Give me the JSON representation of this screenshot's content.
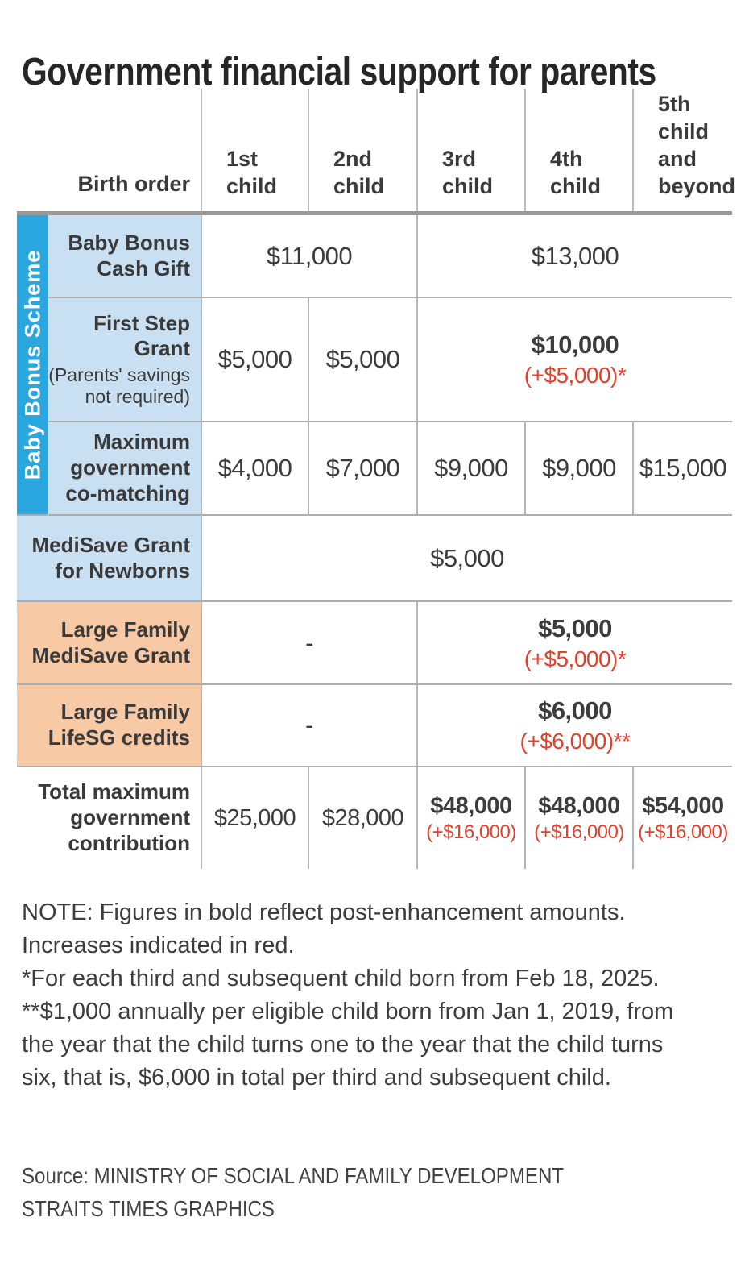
{
  "title": "Government financial support for parents",
  "table": {
    "header": {
      "label": "Birth order",
      "columns": [
        "1st\nchild",
        "2nd\nchild",
        "3rd\nchild",
        "4th\nchild",
        "5th\nchild\nand\nbeyond"
      ]
    },
    "sidebar_label": "Baby Bonus Scheme",
    "rows": [
      {
        "label": "Baby Bonus\nCash Gift",
        "cells": [
          {
            "main": "$11,000"
          },
          {
            "main": "$13,000"
          }
        ]
      },
      {
        "label": "First Step\nGrant",
        "sublabel": "(Parents' savings\nnot required)",
        "cells": [
          {
            "main": "$5,000"
          },
          {
            "main": "$5,000"
          },
          {
            "main": "$10,000",
            "sub": "(+$5,000)*"
          }
        ]
      },
      {
        "label": "Maximum\ngovernment\nco-matching",
        "cells": [
          {
            "main": "$4,000"
          },
          {
            "main": "$7,000"
          },
          {
            "main": "$9,000"
          },
          {
            "main": "$9,000"
          },
          {
            "main": "$15,000"
          }
        ]
      },
      {
        "label": "MediSave Grant\nfor Newborns",
        "cells": [
          {
            "main": "$5,000"
          }
        ]
      },
      {
        "label": "Large Family\nMediSave Grant",
        "cells": [
          {
            "main": "-"
          },
          {
            "main": "$5,000",
            "sub": "(+$5,000)*"
          }
        ]
      },
      {
        "label": "Large Family\nLifeSG credits",
        "cells": [
          {
            "main": "-"
          },
          {
            "main": "$6,000",
            "sub": "(+$6,000)**"
          }
        ]
      },
      {
        "label": "Total maximum\ngovernment\ncontribution",
        "cells": [
          {
            "main": "$25,000"
          },
          {
            "main": "$28,000"
          },
          {
            "main": "$48,000",
            "sub": "(+$16,000)"
          },
          {
            "main": "$48,000",
            "sub": "(+$16,000)"
          },
          {
            "main": "$54,000",
            "sub": "(+$16,000)"
          }
        ]
      }
    ]
  },
  "notes": {
    "text": "NOTE: Figures in bold reflect post-enhancement amounts.\nIncreases indicated in red.\n*For each third and subsequent child born from Feb 18, 2025.\n**$1,000 annually per eligible child born from Jan 1, 2019, from\nthe year that the child turns one to the year that the child turns\nsix, that is, $6,000 in total per third and subsequent child."
  },
  "source": {
    "text": "Source: MINISTRY OF SOCIAL AND FAMILY DEVELOPMENT\nSTRAITS TIMES GRAPHICS"
  },
  "colors": {
    "scheme_blue": "#29a7de",
    "label_blue": "#c9e0f2",
    "label_peach": "#f8c9a5",
    "increase_red": "#e5402d",
    "text_dark": "#3a3a3a",
    "grid_gray": "#b5b5b5",
    "header_rule_gray": "#989898"
  },
  "chart_data": {
    "type": "table",
    "title": "Government financial support for parents",
    "columns": [
      "1st child",
      "2nd child",
      "3rd child",
      "4th child",
      "5th child and beyond"
    ],
    "rows": [
      {
        "name": "Baby Bonus Cash Gift",
        "group": "Baby Bonus Scheme",
        "values": {
          "1st-2nd child": "$11,000",
          "3rd-5th child": "$13,000"
        }
      },
      {
        "name": "First Step Grant (Parents' savings not required)",
        "group": "Baby Bonus Scheme",
        "values": {
          "1st child": "$5,000",
          "2nd child": "$5,000",
          "3rd-5th child": "$10,000 (+$5,000)*"
        }
      },
      {
        "name": "Maximum government co-matching",
        "group": "Baby Bonus Scheme",
        "values": {
          "1st child": "$4,000",
          "2nd child": "$7,000",
          "3rd child": "$9,000",
          "4th child": "$9,000",
          "5th child and beyond": "$15,000"
        }
      },
      {
        "name": "MediSave Grant for Newborns",
        "values": {
          "all children": "$5,000"
        }
      },
      {
        "name": "Large Family MediSave Grant",
        "values": {
          "1st-2nd child": "-",
          "3rd-5th child": "$5,000 (+$5,000)*"
        }
      },
      {
        "name": "Large Family LifeSG credits",
        "values": {
          "1st-2nd child": "-",
          "3rd-5th child": "$6,000 (+$6,000)**"
        }
      },
      {
        "name": "Total maximum government contribution",
        "values": {
          "1st child": "$25,000",
          "2nd child": "$28,000",
          "3rd child": "$48,000 (+$16,000)",
          "4th child": "$48,000 (+$16,000)",
          "5th child and beyond": "$54,000 (+$16,000)"
        }
      }
    ]
  }
}
